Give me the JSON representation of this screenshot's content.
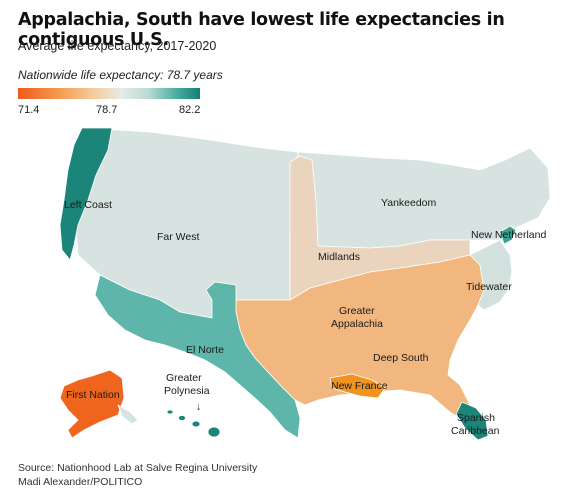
{
  "title": "Appalachia, South have lowest life expectancies in contiguous U.S.",
  "subtitle": "Average life expectancy, 2017-2020",
  "nationwide_note": "Nationwide life expectancy: 78.7 years",
  "legend": {
    "min": "71.4",
    "mid": "78.7",
    "max": "82.2"
  },
  "colors": {
    "highest": "#137f74",
    "high": "#5eb5aa",
    "near_average": "#d6e3e0",
    "slightly_low": "#ead4bd",
    "low": "#f2b77f",
    "lowest": "#f0651e"
  },
  "regions": [
    {
      "name": "Left Coast",
      "color": "#1b857a"
    },
    {
      "name": "Far West",
      "color": "#d6e3e0"
    },
    {
      "name": "Yankeedom",
      "color": "#d6e3e0"
    },
    {
      "name": "New Netherland",
      "color": "#37a293"
    },
    {
      "name": "Midlands",
      "color": "#ead4bd"
    },
    {
      "name": "Tidewater",
      "color": "#d2e1dd"
    },
    {
      "name": "Greater Appalachia",
      "label_lines": [
        "Greater",
        "Appalachia"
      ],
      "color": "#f2b77f"
    },
    {
      "name": "Deep South",
      "color": "#f2b77f"
    },
    {
      "name": "El Norte",
      "color": "#5eb5aa"
    },
    {
      "name": "New France",
      "color": "#f0931f"
    },
    {
      "name": "Spanish Caribbean",
      "label_lines": [
        "Spanish",
        "Caribbean"
      ],
      "color": "#1b857a"
    },
    {
      "name": "First Nation",
      "color": "#f0651e"
    },
    {
      "name": "Greater Polynesia",
      "label_lines": [
        "Greater",
        "Polynesia"
      ],
      "color": "#1b857a"
    }
  ],
  "polynesia_arrow": "↓",
  "source_lines": [
    "Source: Nationhood Lab at Salve Regina University",
    "Madi Alexander/POLITICO"
  ]
}
